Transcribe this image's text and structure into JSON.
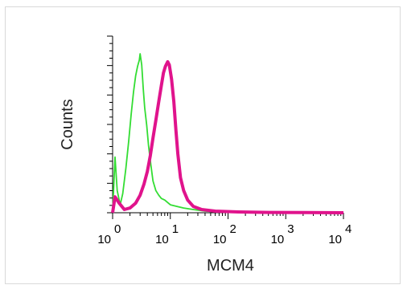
{
  "chart_data": {
    "type": "line",
    "title": "",
    "xlabel": "MCM4",
    "ylabel": "Counts",
    "x_scale": "log",
    "xlim": [
      1,
      10000
    ],
    "ylim": [
      0,
      1.0
    ],
    "grid": false,
    "legend": "none",
    "x_ticks": [
      {
        "value": 1,
        "base": "10",
        "exp": "0"
      },
      {
        "value": 10,
        "base": "10",
        "exp": "1"
      },
      {
        "value": 100,
        "base": "10",
        "exp": "2"
      },
      {
        "value": 1000,
        "base": "10",
        "exp": "3"
      },
      {
        "value": 10000,
        "base": "10",
        "exp": "4"
      }
    ],
    "series": [
      {
        "color": "#33dd33",
        "x": [
          1.0,
          1.1,
          1.2,
          1.35,
          1.5,
          1.7,
          1.9,
          2.1,
          2.3,
          2.5,
          2.7,
          2.9,
          3.0,
          3.2,
          3.4,
          3.6,
          3.9,
          4.2,
          4.6,
          5.0,
          5.6,
          6.3,
          7.0,
          8.0,
          10.0,
          13.0,
          17.0,
          25.0,
          40.0,
          100.0,
          400.0,
          1000.0,
          3000.0,
          10000.0
        ],
        "y": [
          0.0,
          0.35,
          0.14,
          0.05,
          0.12,
          0.28,
          0.45,
          0.62,
          0.76,
          0.86,
          0.92,
          0.96,
          1.0,
          0.93,
          0.78,
          0.66,
          0.55,
          0.42,
          0.3,
          0.2,
          0.14,
          0.11,
          0.09,
          0.08,
          0.05,
          0.04,
          0.03,
          0.02,
          0.01,
          0.005,
          0.003,
          0.003,
          0.002,
          0.0
        ]
      },
      {
        "color": "#e0138c",
        "x": [
          1.0,
          1.1,
          1.3,
          1.6,
          2.0,
          2.5,
          3.0,
          3.5,
          4.0,
          4.5,
          5.0,
          5.6,
          6.3,
          7.0,
          7.6,
          8.2,
          9.0,
          9.6,
          10.5,
          11.5,
          12.5,
          13.5,
          15.0,
          17.0,
          20.0,
          25.0,
          35.0,
          60.0,
          150.0,
          500.0,
          10000.0
        ],
        "y": [
          0.0,
          0.1,
          0.06,
          0.02,
          0.03,
          0.06,
          0.11,
          0.18,
          0.26,
          0.36,
          0.47,
          0.58,
          0.7,
          0.8,
          0.88,
          0.92,
          0.95,
          0.93,
          0.84,
          0.7,
          0.52,
          0.37,
          0.22,
          0.14,
          0.08,
          0.04,
          0.02,
          0.01,
          0.005,
          0.002,
          0.0
        ]
      }
    ]
  }
}
